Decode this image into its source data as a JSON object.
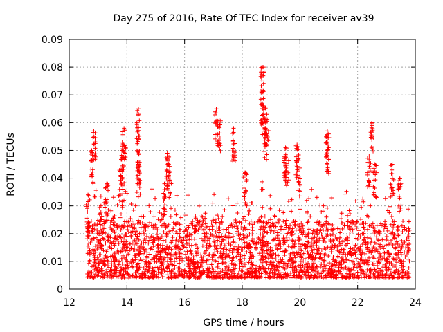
{
  "chart_data": {
    "type": "scatter",
    "title": "Day 275 of 2016, Rate Of TEC Index for receiver av39",
    "xlabel": "GPS time / hours",
    "ylabel": "ROTI / TECUs",
    "xlim": [
      12,
      24
    ],
    "ylim": [
      0,
      0.09
    ],
    "xticks": [
      "12",
      "14",
      "16",
      "18",
      "20",
      "22",
      "24"
    ],
    "yticks": [
      "0",
      "0.01",
      "0.02",
      "0.03",
      "0.04",
      "0.05",
      "0.06",
      "0.07",
      "0.08",
      "0.09"
    ],
    "grid": true,
    "marker": "+",
    "color": "#ff0000",
    "series": [
      {
        "name": "ROTI",
        "x_range": [
          12.6,
          23.8
        ],
        "baseline_range": [
          0.004,
          0.02
        ],
        "clusters": [
          {
            "x": 12.65,
            "y": 0.034
          },
          {
            "x": 12.78,
            "y": 0.05
          },
          {
            "x": 12.85,
            "y": 0.057
          },
          {
            "x": 13.1,
            "y": 0.03
          },
          {
            "x": 13.3,
            "y": 0.038
          },
          {
            "x": 13.8,
            "y": 0.043
          },
          {
            "x": 13.85,
            "y": 0.05
          },
          {
            "x": 13.9,
            "y": 0.058
          },
          {
            "x": 14.4,
            "y": 0.065
          },
          {
            "x": 14.4,
            "y": 0.054
          },
          {
            "x": 14.4,
            "y": 0.045
          },
          {
            "x": 15.3,
            "y": 0.038
          },
          {
            "x": 15.45,
            "y": 0.045
          },
          {
            "x": 15.4,
            "y": 0.049
          },
          {
            "x": 17.1,
            "y": 0.065
          },
          {
            "x": 17.2,
            "y": 0.061
          },
          {
            "x": 17.7,
            "y": 0.058
          },
          {
            "x": 18.1,
            "y": 0.042
          },
          {
            "x": 18.7,
            "y": 0.08
          },
          {
            "x": 18.7,
            "y": 0.071
          },
          {
            "x": 18.75,
            "y": 0.066
          },
          {
            "x": 18.8,
            "y": 0.058
          },
          {
            "x": 18.85,
            "y": 0.063
          },
          {
            "x": 19.5,
            "y": 0.051
          },
          {
            "x": 19.55,
            "y": 0.048
          },
          {
            "x": 19.9,
            "y": 0.052
          },
          {
            "x": 19.95,
            "y": 0.047
          },
          {
            "x": 20.95,
            "y": 0.057
          },
          {
            "x": 20.95,
            "y": 0.053
          },
          {
            "x": 22.5,
            "y": 0.06
          },
          {
            "x": 22.4,
            "y": 0.048
          },
          {
            "x": 22.6,
            "y": 0.045
          },
          {
            "x": 23.2,
            "y": 0.045
          },
          {
            "x": 23.45,
            "y": 0.04
          }
        ]
      }
    ]
  }
}
